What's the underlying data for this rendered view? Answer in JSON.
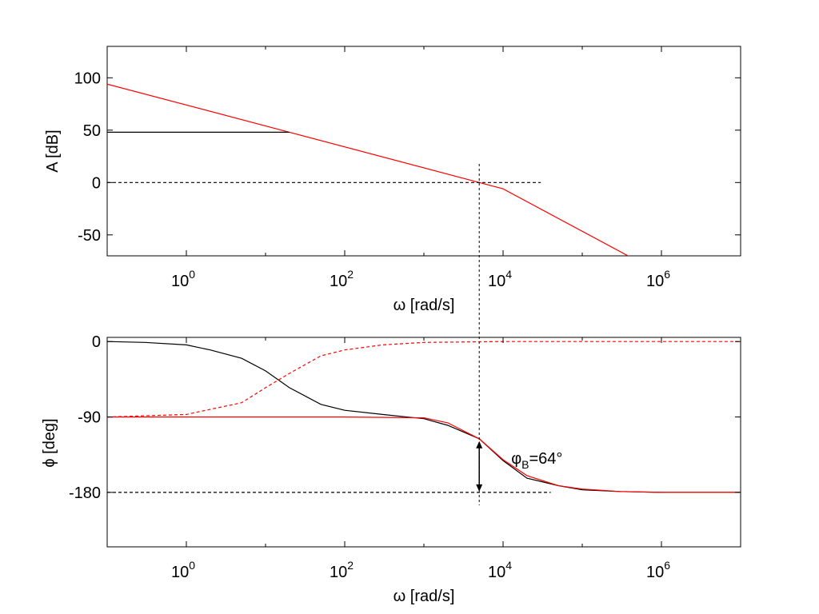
{
  "chart_data": [
    {
      "type": "line",
      "panel": "magnitude",
      "x_scale": "log",
      "xlim": [
        0.1,
        10000000
      ],
      "ylim": [
        -70,
        130
      ],
      "xlabel": "ω [rad/s]",
      "ylabel": "A [dB]",
      "x_ticks": [
        1,
        100,
        10000,
        1000000
      ],
      "x_tick_labels": [
        {
          "base": "10",
          "exp": "0"
        },
        {
          "base": "10",
          "exp": "2"
        },
        {
          "base": "10",
          "exp": "4"
        },
        {
          "base": "10",
          "exp": "6"
        }
      ],
      "y_ticks": [
        "-50",
        "0",
        "50",
        "100"
      ],
      "series": [
        {
          "color": "#ff0000",
          "style": "solid",
          "x": [
            0.1,
            20,
            5000,
            10000,
            400000
          ],
          "y": [
            94,
            48,
            0,
            -6,
            -71
          ]
        },
        {
          "color": "#000000",
          "style": "solid",
          "x": [
            0.1,
            20
          ],
          "y": [
            48,
            48
          ]
        },
        {
          "color": "#000000",
          "style": "dashed",
          "x": [
            0.1,
            30000
          ],
          "y": [
            0,
            0
          ]
        }
      ]
    },
    {
      "type": "line",
      "panel": "phase",
      "x_scale": "log",
      "xlim": [
        0.1,
        10000000
      ],
      "ylim": [
        -245,
        5
      ],
      "xlabel": "ω [rad/s]",
      "ylabel": "ϕ [deg]",
      "x_ticks": [
        1,
        100,
        10000,
        1000000
      ],
      "x_tick_labels": [
        {
          "base": "10",
          "exp": "0"
        },
        {
          "base": "10",
          "exp": "2"
        },
        {
          "base": "10",
          "exp": "4"
        },
        {
          "base": "10",
          "exp": "6"
        }
      ],
      "y_ticks": [
        "-180",
        "-90",
        "0"
      ],
      "series": [
        {
          "color": "#000000",
          "style": "solid",
          "x": [
            0.1,
            0.3,
            1,
            2,
            5,
            10,
            20,
            50,
            100,
            300,
            1000,
            2000,
            5000,
            10000,
            20000,
            50000,
            100000,
            300000,
            1000000,
            10000000
          ],
          "y": [
            0,
            -1,
            -4,
            -10,
            -20,
            -35,
            -55,
            -75,
            -82,
            -87,
            -92,
            -100,
            -116,
            -142,
            -163,
            -172,
            -177,
            -179,
            -180,
            -180
          ]
        },
        {
          "color": "#ff0000",
          "style": "dashed",
          "x": [
            0.1,
            1,
            5,
            10,
            20,
            50,
            100,
            300,
            1000,
            10000,
            10000000
          ],
          "y": [
            -90,
            -87,
            -73,
            -55,
            -38,
            -17,
            -10,
            -4,
            -1,
            0,
            0
          ]
        },
        {
          "color": "#ff0000",
          "style": "solid",
          "x": [
            0.1,
            10,
            100,
            1000,
            2000,
            5000,
            10000,
            20000,
            50000,
            100000,
            300000,
            1000000,
            10000000
          ],
          "y": [
            -90,
            -90,
            -90,
            -91,
            -97,
            -116,
            -141,
            -160,
            -172,
            -176,
            -179,
            -180,
            -180
          ]
        },
        {
          "color": "#000000",
          "style": "dashed",
          "x": [
            0.1,
            40000
          ],
          "y": [
            -180,
            -180
          ]
        }
      ],
      "annotation": {
        "symbol": "φ",
        "subscript": "B",
        "value": "=64°",
        "x": 5000,
        "y_from": -116,
        "y_to": -180
      }
    }
  ],
  "crossover_marker": {
    "x": 5000
  }
}
